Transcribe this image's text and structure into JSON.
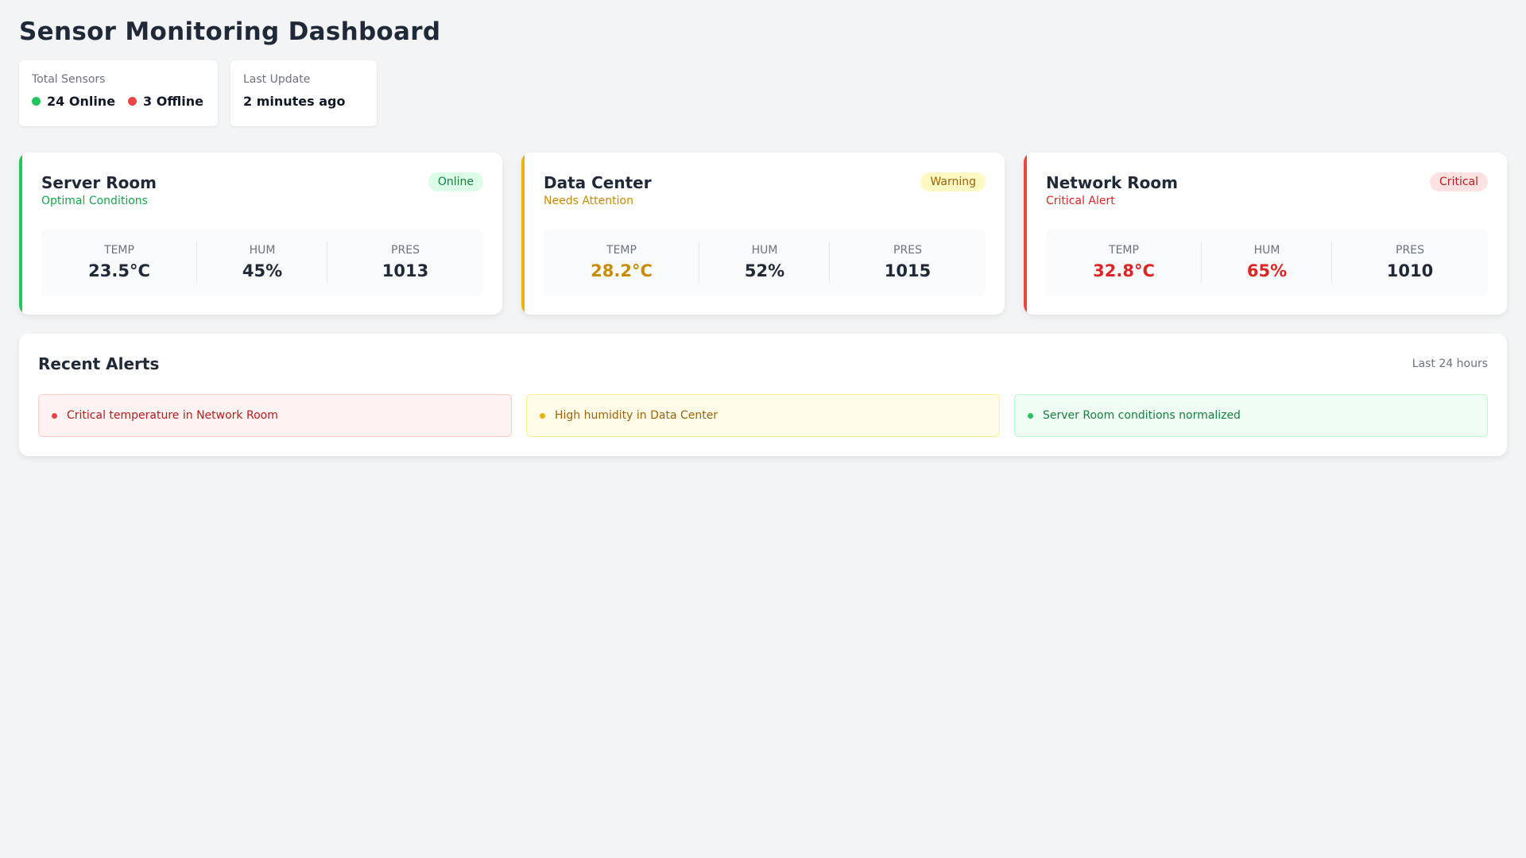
{
  "header": {
    "title": "Sensor Monitoring Dashboard"
  },
  "summary": {
    "total_sensors": {
      "label": "Total Sensors",
      "online_text": "24 Online",
      "offline_text": "3 Offline"
    },
    "last_update": {
      "label": "Last Update",
      "value": "2 minutes ago"
    }
  },
  "rooms": [
    {
      "name": "Server Room",
      "subtitle": "Optimal Conditions",
      "badge": "Online",
      "accent_color": "#22c55e",
      "metrics": [
        {
          "label": "TEMP",
          "value": "23.5°C"
        },
        {
          "label": "HUM",
          "value": "45%"
        },
        {
          "label": "PRES",
          "value": "1013"
        }
      ]
    },
    {
      "name": "Data Center",
      "subtitle": "Needs Attention",
      "badge": "Warning",
      "accent_color": "#eab308",
      "metrics": [
        {
          "label": "TEMP",
          "value": "28.2°C"
        },
        {
          "label": "HUM",
          "value": "52%"
        },
        {
          "label": "PRES",
          "value": "1015"
        }
      ]
    },
    {
      "name": "Network Room",
      "subtitle": "Critical Alert",
      "badge": "Critical",
      "accent_color": "#ef4444",
      "metrics": [
        {
          "label": "TEMP",
          "value": "32.8°C"
        },
        {
          "label": "HUM",
          "value": "65%"
        },
        {
          "label": "PRES",
          "value": "1010"
        }
      ]
    }
  ],
  "alerts": {
    "title": "Recent Alerts",
    "range": "Last 24 hours",
    "items": [
      {
        "text": "Critical temperature in Network Room",
        "level": "critical"
      },
      {
        "text": "High humidity in Data Center",
        "level": "warning"
      },
      {
        "text": "Server Room conditions normalized",
        "level": "ok"
      }
    ]
  }
}
